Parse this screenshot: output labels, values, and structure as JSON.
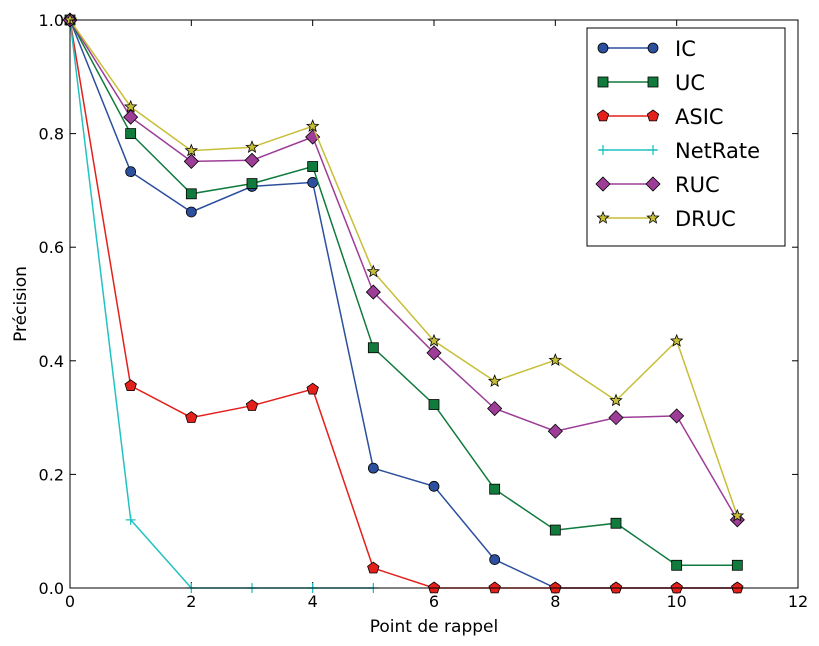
{
  "chart_data": {
    "type": "line",
    "title": "",
    "xlabel": "Point de rappel",
    "ylabel": "Précision",
    "xlim": [
      0,
      12
    ],
    "ylim": [
      0.0,
      1.0
    ],
    "xticks": [
      0,
      2,
      4,
      6,
      8,
      10,
      12
    ],
    "yticks": [
      0.0,
      0.2,
      0.4,
      0.6,
      0.8,
      1.0
    ],
    "xtick_labels": [
      "0",
      "2",
      "4",
      "6",
      "8",
      "10",
      "12"
    ],
    "ytick_labels": [
      "0.0",
      "0.2",
      "0.4",
      "0.6",
      "0.8",
      "1.0"
    ],
    "grid": false,
    "legend_position": "top-right",
    "series": [
      {
        "name": "IC",
        "color": "#2c4f9e",
        "marker": "circle",
        "x": [
          0,
          1,
          2,
          3,
          4,
          5,
          6,
          7,
          8,
          9,
          10,
          11
        ],
        "y": [
          1.0,
          0.733,
          0.662,
          0.707,
          0.714,
          0.211,
          0.179,
          0.05,
          0.0,
          0.0,
          0.0,
          0.0
        ]
      },
      {
        "name": "UC",
        "color": "#117a3d",
        "marker": "square",
        "x": [
          0,
          1,
          2,
          3,
          4,
          5,
          6,
          7,
          8,
          9,
          10,
          11
        ],
        "y": [
          1.0,
          0.8,
          0.694,
          0.712,
          0.742,
          0.423,
          0.323,
          0.174,
          0.102,
          0.114,
          0.04,
          0.04
        ]
      },
      {
        "name": "ASIC",
        "color": "#e3201b",
        "marker": "pentagon",
        "x": [
          0,
          1,
          2,
          3,
          4,
          5,
          6,
          7,
          8,
          9,
          10,
          11
        ],
        "y": [
          1.0,
          0.356,
          0.3,
          0.321,
          0.35,
          0.035,
          0.0,
          0.0,
          0.0,
          0.0,
          0.0,
          0.0
        ]
      },
      {
        "name": "NetRate",
        "color": "#22c2c2",
        "marker": "plus",
        "x": [
          0,
          1,
          2,
          3,
          4,
          5
        ],
        "y": [
          1.0,
          0.12,
          0.0,
          0.0,
          0.0,
          0.0
        ]
      },
      {
        "name": "RUC",
        "color": "#9d3d98",
        "marker": "diamond",
        "x": [
          0,
          1,
          2,
          3,
          4,
          5,
          6,
          7,
          8,
          9,
          10,
          11
        ],
        "y": [
          1.0,
          0.829,
          0.751,
          0.753,
          0.794,
          0.521,
          0.414,
          0.316,
          0.276,
          0.3,
          0.303,
          0.12
        ]
      },
      {
        "name": "DRUC",
        "color": "#c7be37",
        "marker": "star",
        "x": [
          0,
          1,
          2,
          3,
          4,
          5,
          6,
          7,
          8,
          9,
          10,
          11
        ],
        "y": [
          1.0,
          0.847,
          0.77,
          0.776,
          0.813,
          0.557,
          0.435,
          0.364,
          0.401,
          0.33,
          0.435,
          0.127
        ]
      }
    ]
  }
}
